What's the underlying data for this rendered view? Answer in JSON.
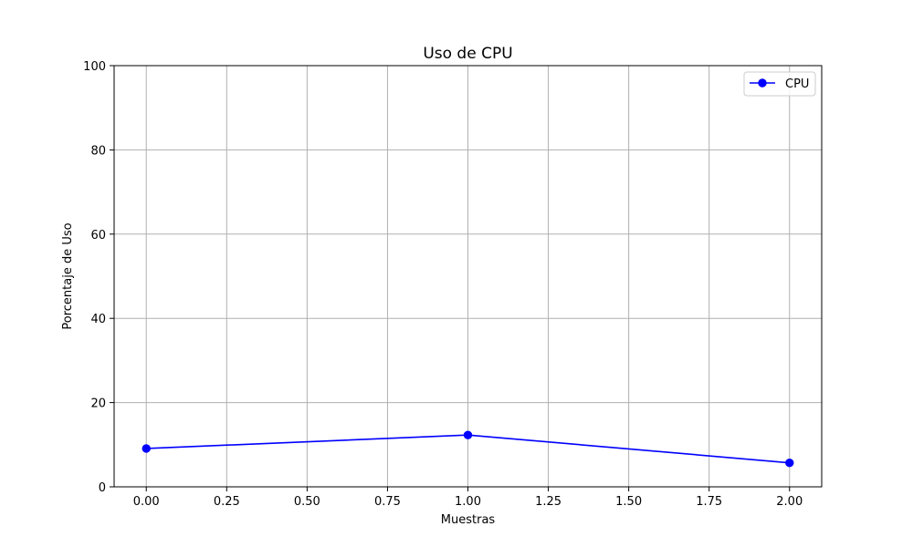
{
  "chart_data": {
    "type": "line",
    "title": "Uso de CPU",
    "xlabel": "Muestras",
    "ylabel": "Porcentaje de Uso",
    "xlim": [
      -0.1,
      2.1
    ],
    "ylim": [
      0,
      100
    ],
    "xticks": [
      0.0,
      0.25,
      0.5,
      0.75,
      1.0,
      1.25,
      1.5,
      1.75,
      2.0
    ],
    "xtick_labels": [
      "0.00",
      "0.25",
      "0.50",
      "0.75",
      "1.00",
      "1.25",
      "1.50",
      "1.75",
      "2.00"
    ],
    "yticks": [
      0,
      20,
      40,
      60,
      80,
      100
    ],
    "ytick_labels": [
      "0",
      "20",
      "40",
      "60",
      "80",
      "100"
    ],
    "grid": true,
    "legend_position": "top-right",
    "series": [
      {
        "name": "CPU",
        "color": "#0000ff",
        "marker": "circle",
        "x": [
          0,
          1,
          2
        ],
        "y": [
          9.1,
          12.3,
          5.7
        ]
      }
    ]
  }
}
